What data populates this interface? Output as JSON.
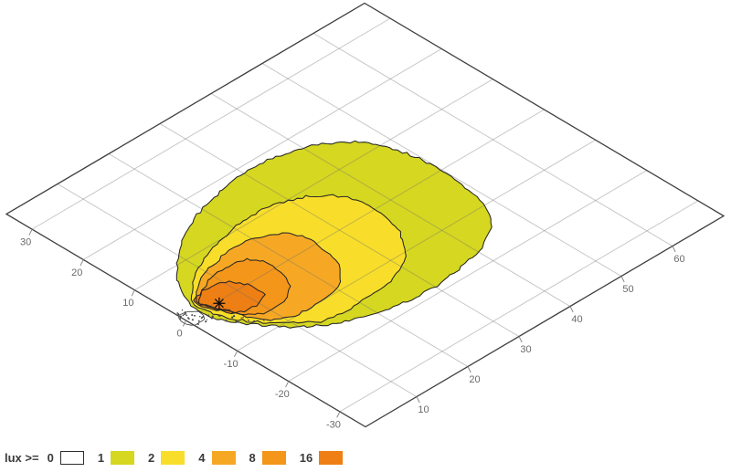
{
  "chart_data": {
    "type": "contour",
    "title": "",
    "legend": {
      "prefix": "lux >=",
      "levels": [
        {
          "label": "0",
          "color": "#ffffff",
          "border": true
        },
        {
          "label": "1",
          "color": "#d5d721"
        },
        {
          "label": "2",
          "color": "#f8de2a"
        },
        {
          "label": "4",
          "color": "#f6a824"
        },
        {
          "label": "8",
          "color": "#f4961a"
        },
        {
          "label": "16",
          "color": "#ee7f14"
        }
      ]
    },
    "axes": {
      "left": {
        "ticks": [
          30,
          20,
          10,
          0,
          -10,
          -20,
          -30
        ],
        "min": -35,
        "max": 35
      },
      "right": {
        "ticks": [
          10,
          20,
          30,
          40,
          50,
          60
        ],
        "min": 0,
        "max": 70
      }
    },
    "source_marker": {
      "u": -0.4,
      "v": 6.1,
      "symbol": "asterisk"
    },
    "contours": [
      {
        "level": 1,
        "points_uv": [
          [
            8.4,
            6.6
          ],
          [
            12.9,
            12
          ],
          [
            16,
            17.7
          ],
          [
            17.7,
            23.8
          ],
          [
            18.7,
            30.1
          ],
          [
            18.2,
            36
          ],
          [
            16.2,
            41.9
          ],
          [
            12.6,
            46.5
          ],
          [
            6.8,
            49
          ],
          [
            0.5,
            49.9
          ],
          [
            -6,
            49.2
          ],
          [
            -11,
            47.9
          ],
          [
            -13.6,
            46.1
          ],
          [
            -16.7,
            41
          ],
          [
            -18.1,
            34.3
          ],
          [
            -18.6,
            27.2
          ],
          [
            -17.5,
            20.6
          ],
          [
            -15.4,
            14.9
          ],
          [
            -12,
            10
          ],
          [
            -8.2,
            6.7
          ],
          [
            -4.5,
            4.3
          ],
          [
            -1.8,
            3
          ],
          [
            0.3,
            2.7
          ],
          [
            2.7,
            3.3
          ],
          [
            6.1,
            5
          ]
        ]
      },
      {
        "level": 2,
        "points_uv": [
          [
            2.9,
            4
          ],
          [
            7.4,
            9.8
          ],
          [
            9.5,
            15.5
          ],
          [
            10.8,
            21.4
          ],
          [
            10.5,
            27.8
          ],
          [
            8.4,
            32.8
          ],
          [
            4.6,
            36.1
          ],
          [
            -0.6,
            36.8
          ],
          [
            -6.2,
            35.5
          ],
          [
            -10.8,
            32
          ],
          [
            -13.1,
            27.4
          ],
          [
            -13.7,
            21.4
          ],
          [
            -13.7,
            14.2
          ],
          [
            -10.4,
            9.9
          ],
          [
            -6.7,
            6.4
          ],
          [
            -2.8,
            4.3
          ],
          [
            0.2,
            3.5
          ]
        ]
      },
      {
        "level": 4,
        "points_uv": [
          [
            2.3,
            4.3
          ],
          [
            5.8,
            9.3
          ],
          [
            7,
            14.1
          ],
          [
            7.2,
            19
          ],
          [
            5.7,
            22.9
          ],
          [
            2.6,
            25.2
          ],
          [
            -2.1,
            25.3
          ],
          [
            -6.4,
            23.7
          ],
          [
            -9.2,
            20.5
          ],
          [
            -10,
            16.1
          ],
          [
            -9.6,
            10.6
          ],
          [
            -6.5,
            7.2
          ],
          [
            -2.6,
            5.7
          ],
          [
            0.1,
            4.5
          ]
        ]
      },
      {
        "level": 8,
        "points_uv": [
          [
            1.7,
            4.3
          ],
          [
            4.3,
            8.7
          ],
          [
            4.8,
            12.6
          ],
          [
            4.2,
            16
          ],
          [
            1.5,
            17.5
          ],
          [
            -2,
            17.1
          ],
          [
            -5.1,
            15.1
          ],
          [
            -6.5,
            12
          ],
          [
            -6,
            8.2
          ],
          [
            -3.6,
            6
          ],
          [
            -0.4,
            4.9
          ]
        ]
      },
      {
        "level": 16,
        "points_uv": [
          [
            2.6,
            4.3
          ],
          [
            3.3,
            8.1
          ],
          [
            2,
            10.7
          ],
          [
            -0.6,
            12.1
          ],
          [
            -3.4,
            11.9
          ],
          [
            -4.4,
            9.3
          ],
          [
            -3.5,
            6.2
          ],
          [
            -0.7,
            4.4
          ],
          [
            1.4,
            3.8
          ]
        ]
      }
    ],
    "level0_patch": {
      "color": "#ffffff",
      "points_uv": [
        [
          1.4,
          0.1
        ],
        [
          1.3,
          1.7
        ],
        [
          0.1,
          2.7
        ],
        [
          -1.5,
          2.1
        ],
        [
          -1.8,
          0.9
        ],
        [
          -1.3,
          -0.5
        ],
        [
          0.3,
          -0.6
        ]
      ]
    }
  }
}
